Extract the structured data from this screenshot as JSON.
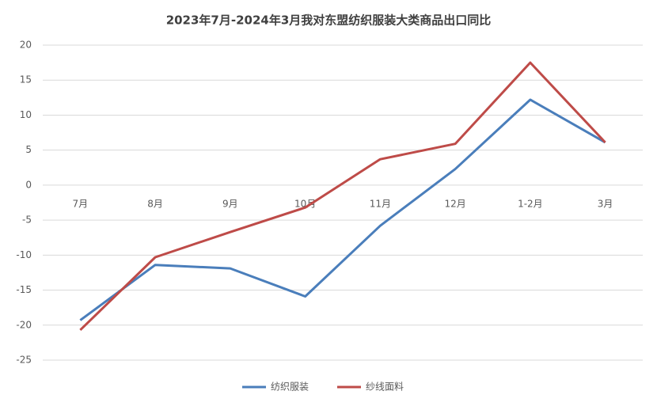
{
  "chart_data": {
    "type": "line",
    "title": "2023年7月-2024年3月我对东盟纺织服装大类商品出口同比",
    "categories": [
      "7月",
      "8月",
      "9月",
      "10月",
      "11月",
      "12月",
      "1-2月",
      "3月"
    ],
    "series": [
      {
        "name": "纺织服装",
        "color": "#4a7ebb",
        "values": [
          -19.3,
          -11.4,
          -11.9,
          -15.9,
          -5.8,
          2.3,
          12.2,
          6.1
        ]
      },
      {
        "name": "纱线面料",
        "color": "#be4b48",
        "values": [
          -20.7,
          -10.3,
          -6.7,
          -3.2,
          3.7,
          5.9,
          17.5,
          6.1
        ]
      }
    ],
    "ylim": [
      -25,
      20
    ],
    "yticks": [
      20,
      15,
      10,
      5,
      0,
      -5,
      -10,
      -15,
      -20,
      -25
    ],
    "grid": true,
    "legend": "bottom"
  }
}
